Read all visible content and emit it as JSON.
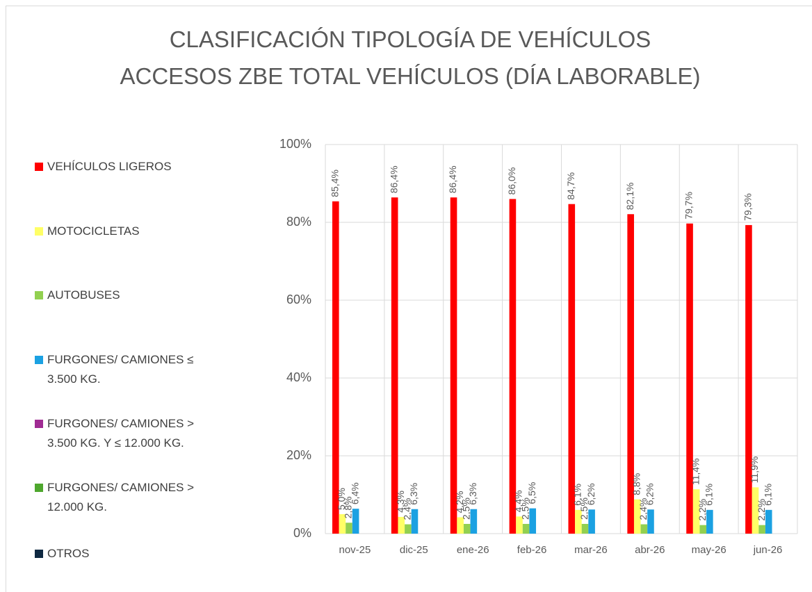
{
  "chart_data": {
    "type": "bar",
    "title": "CLASIFICACIÓN TIPOLOGÍA DE VEHÍCULOS",
    "subtitle": "ACCESOS ZBE TOTAL VEHÍCULOS (DÍA LABORABLE)",
    "categories": [
      "nov-25",
      "dic-25",
      "ene-26",
      "feb-26",
      "mar-26",
      "abr-26",
      "may-26",
      "jun-26"
    ],
    "ylim": [
      0,
      100
    ],
    "yticks": [
      {
        "value": 0,
        "label": "0%"
      },
      {
        "value": 20,
        "label": "20%"
      },
      {
        "value": 40,
        "label": "40%"
      },
      {
        "value": 60,
        "label": "60%"
      },
      {
        "value": 80,
        "label": "80%"
      },
      {
        "value": 100,
        "label": "100%"
      }
    ],
    "grid": true,
    "legend": "left",
    "series": [
      {
        "name": "VEHÍCULOS LIGEROS",
        "color": "#ff0000",
        "values": [
          85.4,
          86.4,
          86.4,
          86.0,
          84.7,
          82.1,
          79.7,
          79.3
        ],
        "value_labels": [
          "85,4%",
          "86,4%",
          "86,4%",
          "86,0%",
          "84,7%",
          "82,1%",
          "79,7%",
          "79,3%"
        ]
      },
      {
        "name": "MOTOCICLETAS",
        "color": "#ffff66",
        "values": [
          5.0,
          4.3,
          4.2,
          4.4,
          6.1,
          8.8,
          11.4,
          11.9
        ],
        "value_labels": [
          "5,0%",
          "4,3%",
          "4,2%",
          "4,4%",
          "6,1%",
          "8,8%",
          "11,4%",
          "11,9%"
        ]
      },
      {
        "name": "AUTOBUSES",
        "color": "#92d050",
        "values": [
          2.8,
          2.4,
          2.5,
          2.5,
          2.5,
          2.4,
          2.2,
          2.2
        ],
        "value_labels": [
          "2,8%",
          "2,4%",
          "2,5%",
          "2,5%",
          "2,5%",
          "2,4%",
          "2,2%",
          "2,2%"
        ]
      },
      {
        "name": "FURGONES/ CAMIONES ≤ 3.500 KG.",
        "color": "#1ba1e2",
        "values": [
          6.4,
          6.3,
          6.3,
          6.5,
          6.2,
          6.2,
          6.1,
          6.1
        ],
        "value_labels": [
          "6,4%",
          "6,3%",
          "6,3%",
          "6,5%",
          "6,2%",
          "6,2%",
          "6,1%",
          "6,1%"
        ]
      },
      {
        "name": "FURGONES/ CAMIONES > 3.500 KG. Y ≤ 12.000 KG.",
        "color": "#a02b93",
        "values": [
          0,
          0,
          0,
          0,
          0,
          0,
          0,
          0
        ]
      },
      {
        "name": "FURGONES/ CAMIONES > 12.000 KG.",
        "color": "#4ea72e",
        "values": [
          0,
          0,
          0,
          0,
          0,
          0,
          0,
          0
        ]
      },
      {
        "name": "OTROS",
        "color": "#0e2841",
        "values": [
          0,
          0,
          0,
          0,
          0,
          0,
          0,
          0
        ]
      }
    ]
  }
}
